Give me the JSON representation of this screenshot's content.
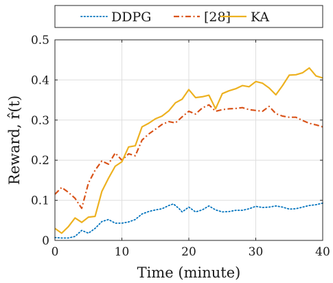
{
  "chart_data": {
    "type": "line",
    "title": "",
    "xlabel": "Time (minute)",
    "ylabel": "Reward, r̂(t)",
    "xlim": [
      0,
      40
    ],
    "ylim": [
      0,
      0.5
    ],
    "xticks": [
      0,
      10,
      20,
      30,
      40
    ],
    "yticks": [
      0,
      0.1,
      0.2,
      0.3,
      0.4,
      0.5
    ],
    "xtick_labels": [
      "0",
      "10",
      "20",
      "30",
      "40"
    ],
    "ytick_labels": [
      "0",
      "0.1",
      "0.2",
      "0.3",
      "0.4",
      "0.5"
    ],
    "grid": true,
    "legend_position": "top-outside",
    "series": [
      {
        "name": "DDPG",
        "color": "#0072bd",
        "style": "dotted",
        "x": [
          0,
          1,
          2,
          3,
          4,
          5,
          6,
          7,
          8,
          9,
          10,
          11,
          12,
          13,
          14,
          15,
          16,
          17,
          17.7,
          18.5,
          19,
          20,
          21,
          22,
          23,
          24,
          25,
          26,
          27,
          28,
          29,
          30,
          31,
          32,
          33,
          34,
          35,
          36,
          37,
          38,
          39,
          40
        ],
        "y": [
          0.007,
          0.006,
          0.006,
          0.01,
          0.025,
          0.018,
          0.03,
          0.047,
          0.052,
          0.043,
          0.043,
          0.046,
          0.052,
          0.066,
          0.072,
          0.076,
          0.079,
          0.087,
          0.091,
          0.08,
          0.071,
          0.083,
          0.071,
          0.076,
          0.086,
          0.076,
          0.071,
          0.072,
          0.075,
          0.075,
          0.079,
          0.085,
          0.082,
          0.083,
          0.086,
          0.083,
          0.078,
          0.079,
          0.083,
          0.087,
          0.089,
          0.093
        ]
      },
      {
        "name": "[28]",
        "color": "#d95319",
        "style": "dashdot",
        "x": [
          0,
          1,
          2,
          3,
          4,
          5,
          6,
          7,
          8,
          9,
          10,
          11,
          12,
          13,
          14,
          15,
          16,
          17,
          18,
          19,
          20,
          21,
          22,
          23,
          24,
          25,
          26,
          27,
          28,
          29,
          30,
          31,
          32,
          33,
          34,
          35,
          36,
          37,
          38,
          39,
          40
        ],
        "y": [
          0.115,
          0.132,
          0.12,
          0.105,
          0.08,
          0.143,
          0.175,
          0.198,
          0.19,
          0.218,
          0.2,
          0.216,
          0.211,
          0.25,
          0.265,
          0.277,
          0.289,
          0.296,
          0.293,
          0.308,
          0.322,
          0.315,
          0.33,
          0.338,
          0.322,
          0.326,
          0.328,
          0.329,
          0.331,
          0.326,
          0.324,
          0.322,
          0.334,
          0.316,
          0.31,
          0.307,
          0.307,
          0.299,
          0.292,
          0.288,
          0.283
        ]
      },
      {
        "name": "KA",
        "color": "#edb120",
        "style": "solid",
        "x": [
          0,
          1,
          2,
          3,
          4,
          5,
          6,
          7,
          8,
          9,
          10,
          11,
          12,
          13,
          14,
          15,
          16,
          17,
          18,
          19,
          20,
          21,
          22,
          23,
          24,
          25,
          26,
          27,
          28,
          29,
          30,
          31,
          32,
          33,
          34,
          35,
          36,
          37,
          38,
          39,
          40
        ],
        "y": [
          0.03,
          0.018,
          0.034,
          0.056,
          0.045,
          0.058,
          0.06,
          0.122,
          0.155,
          0.185,
          0.196,
          0.233,
          0.236,
          0.283,
          0.292,
          0.303,
          0.31,
          0.323,
          0.343,
          0.352,
          0.376,
          0.356,
          0.358,
          0.362,
          0.328,
          0.366,
          0.373,
          0.378,
          0.386,
          0.383,
          0.396,
          0.392,
          0.38,
          0.363,
          0.386,
          0.412,
          0.413,
          0.418,
          0.43,
          0.41,
          0.405
        ]
      }
    ]
  }
}
